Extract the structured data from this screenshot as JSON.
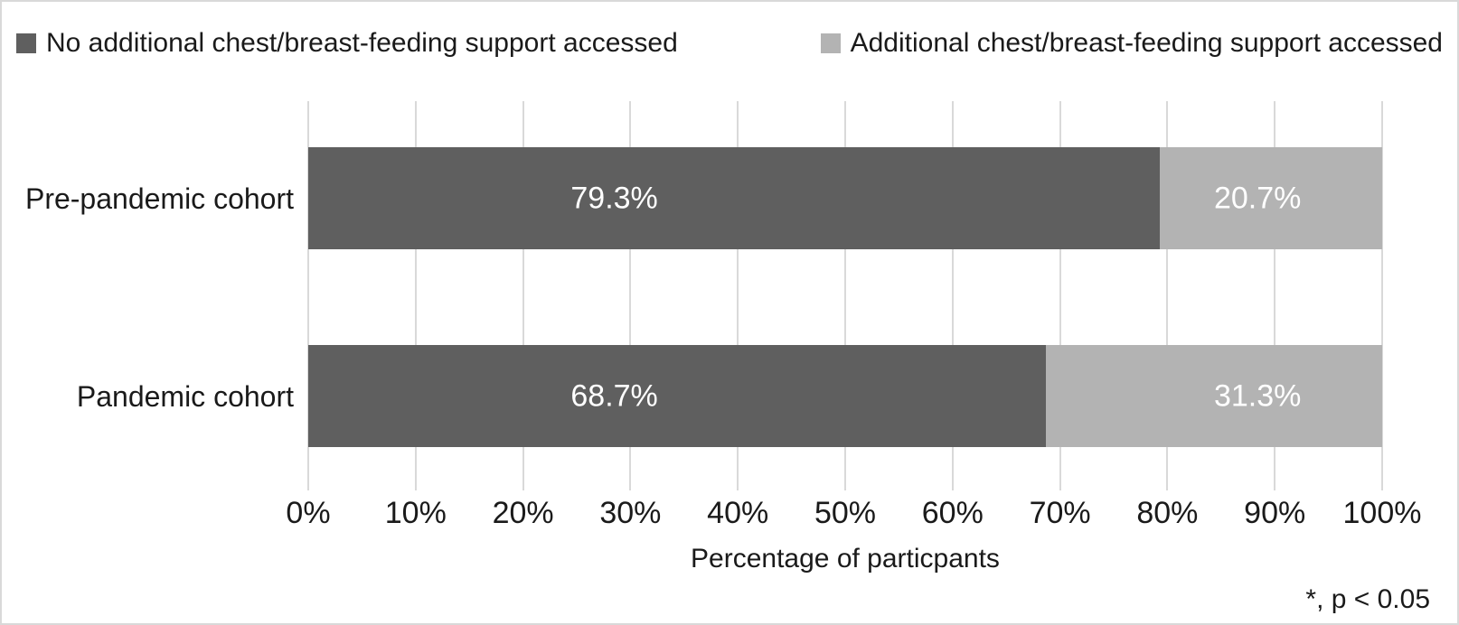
{
  "frame": {
    "background": "#ffffff",
    "border_color": "#d9d9d9",
    "text_color": "#1a1a1a"
  },
  "legend": {
    "items": [
      {
        "label": "No additional chest/breast-feeding support accessed",
        "color": "#5f5f5f"
      },
      {
        "label": "Additional chest/breast-feeding support accessed",
        "color": "#b3b3b3"
      }
    ]
  },
  "chart_data": {
    "type": "bar",
    "orientation": "horizontal",
    "stacked": true,
    "categories": [
      "Pre-pandemic cohort",
      "Pandemic cohort"
    ],
    "series": [
      {
        "name": "No additional chest/breast-feeding support accessed",
        "color": "#5f5f5f",
        "values": [
          79.3,
          68.7
        ],
        "labels": [
          "79.3%",
          "68.7%"
        ],
        "label_text_color": "#ffffff"
      },
      {
        "name": "Additional chest/breast-feeding support accessed",
        "color": "#b3b3b3",
        "values": [
          20.7,
          31.3
        ],
        "labels": [
          "20.7%",
          "31.3%"
        ],
        "label_text_color": "#ffffff"
      }
    ],
    "xlabel": "Percentage of particpants",
    "xlim": [
      0,
      100
    ],
    "xticks": [
      "0%",
      "10%",
      "20%",
      "30%",
      "40%",
      "50%",
      "60%",
      "70%",
      "80%",
      "90%",
      "100%"
    ],
    "grid": true,
    "gridline_color": "#d9d9d9",
    "legend_position": "top",
    "annotation": "*, p < 0.05",
    "label_x_pct": {
      "series0": 28.5,
      "series1": 88.4
    }
  }
}
